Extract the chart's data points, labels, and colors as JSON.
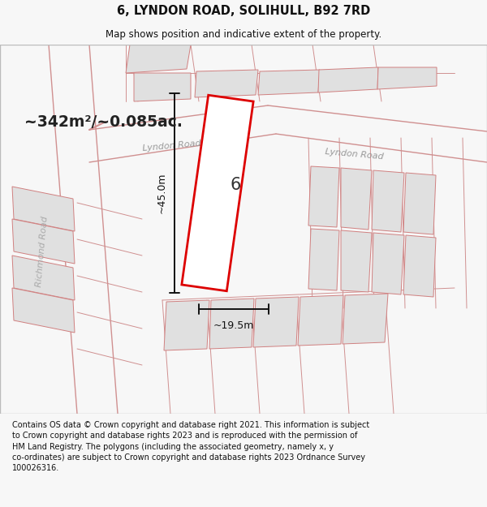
{
  "title": "6, LYNDON ROAD, SOLIHULL, B92 7RD",
  "subtitle": "Map shows position and indicative extent of the property.",
  "area_text": "~342m²/~0.085ac.",
  "dim_width": "~19.5m",
  "dim_height": "~45.0m",
  "plot_number": "6",
  "footer": "Contains OS data © Crown copyright and database right 2021. This information is subject to Crown copyright and database rights 2023 and is reproduced with the permission of HM Land Registry. The polygons (including the associated geometry, namely x, y co-ordinates) are subject to Crown copyright and database rights 2023 Ordnance Survey 100026316.",
  "bg_color": "#f7f7f7",
  "map_bg": "#ffffff",
  "plot_fill": "#ffffff",
  "plot_edge": "#dd0000",
  "neighbor_fill": "#e0e0e0",
  "neighbor_edge": "#d08080",
  "road_color": "#d09090",
  "title_fontsize": 10.5,
  "subtitle_fontsize": 8.5,
  "footer_fontsize": 7.0,
  "prop_rotation_deg": 8
}
